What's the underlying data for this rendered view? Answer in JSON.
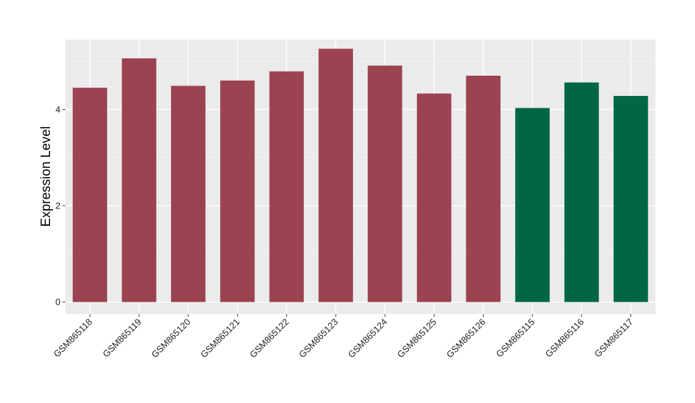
{
  "chart_data": {
    "type": "bar",
    "title": "",
    "xlabel": "",
    "ylabel": "Expression Level",
    "ylim": [
      -0.25,
      5.45
    ],
    "yticks": [
      0,
      2,
      4
    ],
    "grid": true,
    "legend": "none",
    "categories": [
      "GSM865118",
      "GSM865119",
      "GSM865120",
      "GSM865121",
      "GSM865122",
      "GSM865123",
      "GSM865124",
      "GSM865125",
      "GSM865126",
      "GSM865115",
      "GSM865116",
      "GSM865117"
    ],
    "values": [
      4.45,
      5.06,
      4.49,
      4.6,
      4.79,
      5.26,
      4.91,
      4.33,
      4.7,
      4.03,
      4.56,
      4.28
    ],
    "groups": [
      "a",
      "a",
      "a",
      "a",
      "a",
      "a",
      "a",
      "a",
      "a",
      "b",
      "b",
      "b"
    ],
    "colors": {
      "a": "#9b4350",
      "b": "#006644",
      "panel": "#ebebeb",
      "grid_major": "#ffffff",
      "grid_minor": "#f5f5f5"
    }
  }
}
